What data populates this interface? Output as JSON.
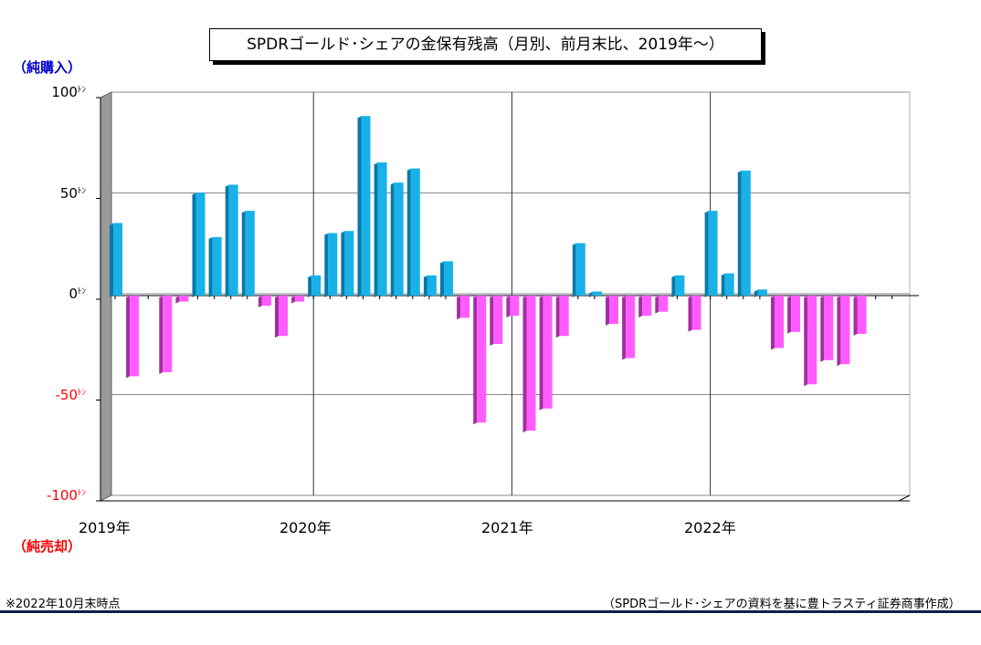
{
  "title": "SPDRゴールド･シェアの金保有残高（月別、前月末比、2019年～）",
  "labels": {
    "buy": "（純購入）",
    "sell": "（純売却）",
    "buy_color": "#0000cc",
    "sell_color": "#ff0000"
  },
  "y_ticks": [
    {
      "value": "100",
      "unit": "ﾄﾝ",
      "color": "#000000"
    },
    {
      "value": "50",
      "unit": "ﾄﾝ",
      "color": "#000000"
    },
    {
      "value": "0",
      "unit": "ﾄﾝ",
      "color": "#000000"
    },
    {
      "value": "-50",
      "unit": "ﾄﾝ",
      "color": "#ff0000"
    },
    {
      "value": "-100",
      "unit": "ﾄﾝ",
      "color": "#ff0000"
    }
  ],
  "x_ticks": [
    "2019年",
    "2020年",
    "2021年",
    "2022年"
  ],
  "footnote_left": "※2022年10月末時点",
  "footnote_right": "（SPDRゴールド･シェアの資料を基に豊トラスティ証券商事作成）",
  "colors": {
    "positive": "#19b2e8",
    "positive_dark": "#0a78a8",
    "negative": "#ff5cff",
    "negative_dark": "#a030a0"
  },
  "chart_data": {
    "type": "bar",
    "ylim": [
      -100,
      100
    ],
    "xlabel": "",
    "ylabel": "",
    "categories": [
      "2019-01",
      "2019-02",
      "2019-03",
      "2019-04",
      "2019-05",
      "2019-06",
      "2019-07",
      "2019-08",
      "2019-09",
      "2019-10",
      "2019-11",
      "2019-12",
      "2020-01",
      "2020-02",
      "2020-03",
      "2020-04",
      "2020-05",
      "2020-06",
      "2020-07",
      "2020-08",
      "2020-09",
      "2020-10",
      "2020-11",
      "2020-12",
      "2021-01",
      "2021-02",
      "2021-03",
      "2021-04",
      "2021-05",
      "2021-06",
      "2021-07",
      "2021-08",
      "2021-09",
      "2021-10",
      "2021-11",
      "2021-12",
      "2022-01",
      "2022-02",
      "2022-03",
      "2022-04",
      "2022-05",
      "2022-06",
      "2022-07",
      "2022-08",
      "2022-09",
      "2022-10"
    ],
    "values": [
      36,
      -40,
      0,
      -38,
      -3,
      51,
      29,
      55,
      42,
      -5,
      -20,
      -3,
      10,
      31,
      32,
      89,
      66,
      56,
      63,
      10,
      17,
      -11,
      -63,
      -24,
      -10,
      -67,
      -56,
      -20,
      26,
      2,
      -14,
      -31,
      -10,
      -8,
      10,
      -17,
      42,
      11,
      62,
      3,
      -26,
      -18,
      -44,
      -32,
      -34,
      -19
    ]
  }
}
